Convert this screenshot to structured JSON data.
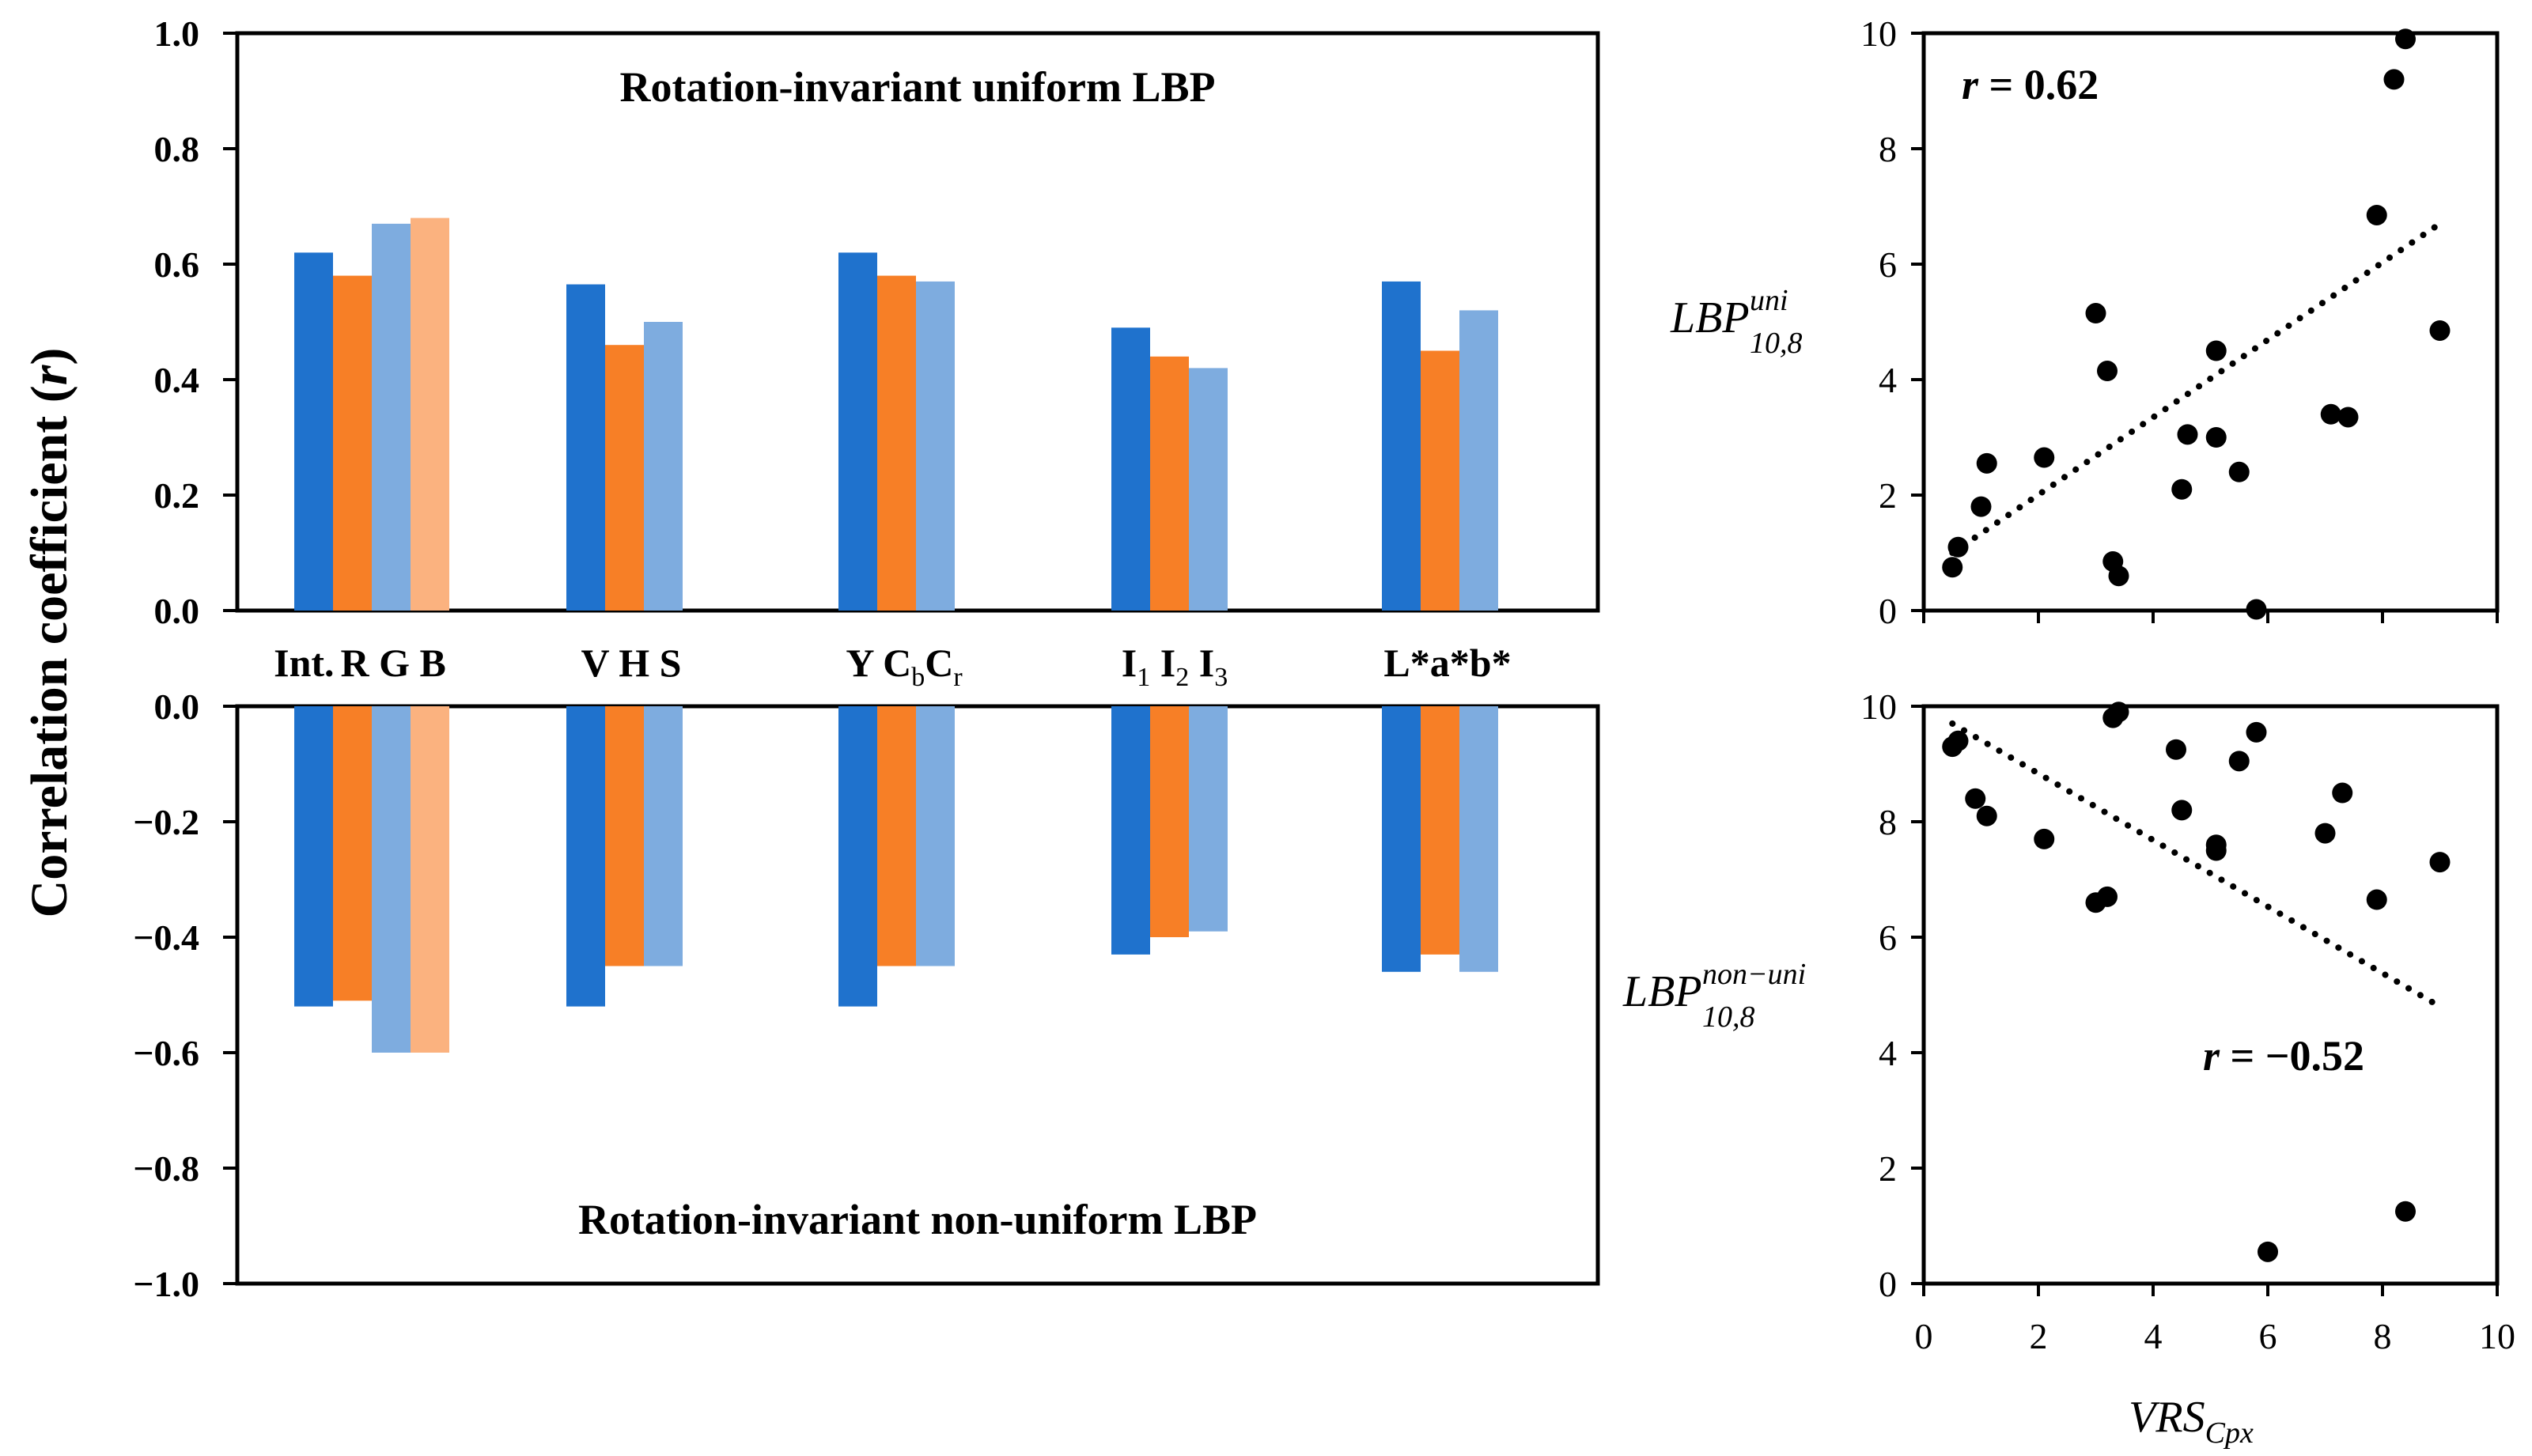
{
  "chart_data": [
    {
      "type": "bar",
      "panel": "top",
      "title": "Rotation-invariant uniform LBP",
      "ylabel": "Correlation coefficient (r)",
      "ylabel_main": "Correlation coefficient (",
      "ylabel_var": "r",
      "ylabel_close": ")",
      "ylim": [
        0.0,
        1.0
      ],
      "yticks": [
        "1.0",
        "0.8",
        "0.6",
        "0.4",
        "0.2",
        "0.0"
      ],
      "groups": [
        {
          "label_parts": [
            {
              "t": "Int."
            },
            {
              "t": "R G B"
            }
          ],
          "values": [
            0.62,
            0.58,
            0.67,
            0.68
          ]
        },
        {
          "label_parts": [
            {
              "t": "V H S"
            }
          ],
          "values": [
            0.565,
            0.46,
            0.5
          ]
        },
        {
          "label_parts": [
            {
              "t": "Y C"
            },
            {
              "t": "b",
              "sub": true
            },
            {
              "t": "C"
            },
            {
              "t": "r",
              "sub": true
            }
          ],
          "values": [
            0.62,
            0.58,
            0.57
          ]
        },
        {
          "label_parts": [
            {
              "t": "I"
            },
            {
              "t": "1",
              "sub": true
            },
            {
              "t": " I"
            },
            {
              "t": "2",
              "sub": true
            },
            {
              "t": " I"
            },
            {
              "t": "3",
              "sub": true
            }
          ],
          "values": [
            0.49,
            0.44,
            0.42
          ]
        },
        {
          "label_parts": [
            {
              "t": "L*a*b*"
            }
          ],
          "values": [
            0.57,
            0.45,
            0.52
          ]
        }
      ],
      "colors": [
        "#1f72cd",
        "#f77f26",
        "#7eacdf",
        "#fbb27f"
      ]
    },
    {
      "type": "bar",
      "panel": "bottom",
      "title": "Rotation-invariant non-uniform LBP",
      "ylim": [
        -1.0,
        0.0
      ],
      "yticks": [
        "0.0",
        "−0.2",
        "−0.4",
        "−0.6",
        "−0.8",
        "−1.0"
      ],
      "groups": [
        {
          "values": [
            -0.52,
            -0.51,
            -0.6,
            -0.6
          ]
        },
        {
          "values": [
            -0.52,
            -0.45,
            -0.45
          ]
        },
        {
          "values": [
            -0.52,
            -0.45,
            -0.45
          ]
        },
        {
          "values": [
            -0.43,
            -0.4,
            -0.39
          ]
        },
        {
          "values": [
            -0.46,
            -0.43,
            -0.46
          ]
        }
      ],
      "colors": [
        "#1f72cd",
        "#f77f26",
        "#7eacdf",
        "#fbb27f"
      ]
    },
    {
      "type": "scatter",
      "panel": "top-right",
      "ylabel": "LBP",
      "ylabel_sup": "uni",
      "ylabel_sub": "10,8",
      "annotation_prefix": "r",
      "annotation_value": " = 0.62",
      "xlim": [
        0,
        10
      ],
      "ylim": [
        0,
        10
      ],
      "yticks": [
        "0",
        "2",
        "4",
        "6",
        "8",
        "10"
      ],
      "points": [
        [
          0.5,
          0.75
        ],
        [
          0.6,
          1.1
        ],
        [
          1.0,
          1.8
        ],
        [
          1.1,
          2.55
        ],
        [
          2.1,
          2.65
        ],
        [
          3.0,
          5.15
        ],
        [
          3.2,
          4.15
        ],
        [
          3.3,
          0.85
        ],
        [
          3.4,
          0.6
        ],
        [
          4.5,
          2.1
        ],
        [
          4.6,
          3.05
        ],
        [
          5.1,
          4.5
        ],
        [
          5.1,
          3.0
        ],
        [
          5.5,
          2.4
        ],
        [
          5.8,
          0.02
        ],
        [
          7.1,
          3.4
        ],
        [
          7.4,
          3.35
        ],
        [
          7.9,
          6.85
        ],
        [
          8.2,
          9.2
        ],
        [
          8.4,
          9.9
        ],
        [
          9.0,
          4.85
        ]
      ],
      "trend": [
        [
          0.5,
          1.0
        ],
        [
          9.0,
          6.7
        ]
      ]
    },
    {
      "type": "scatter",
      "panel": "bottom-right",
      "ylabel": "LBP",
      "ylabel_sup": "non−uni",
      "ylabel_sub": "10,8",
      "annotation_prefix": "r",
      "annotation_value": " = −0.52",
      "xlabel": "VRS",
      "xlabel_sub": "Cpx",
      "xlim": [
        0,
        10
      ],
      "ylim": [
        0,
        10
      ],
      "xticks": [
        "0",
        "2",
        "4",
        "6",
        "8",
        "10"
      ],
      "yticks": [
        "0",
        "2",
        "4",
        "6",
        "8",
        "10"
      ],
      "points": [
        [
          0.5,
          9.3
        ],
        [
          0.6,
          9.4
        ],
        [
          0.9,
          8.4
        ],
        [
          1.1,
          8.1
        ],
        [
          2.1,
          7.7
        ],
        [
          3.0,
          6.6
        ],
        [
          3.2,
          6.7
        ],
        [
          3.3,
          9.8
        ],
        [
          3.4,
          9.9
        ],
        [
          4.4,
          9.25
        ],
        [
          4.5,
          8.2
        ],
        [
          5.1,
          7.6
        ],
        [
          5.1,
          7.5
        ],
        [
          5.5,
          9.05
        ],
        [
          5.8,
          9.55
        ],
        [
          6.0,
          0.55
        ],
        [
          7.0,
          7.8
        ],
        [
          7.3,
          8.5
        ],
        [
          7.9,
          6.65
        ],
        [
          8.4,
          1.25
        ],
        [
          9.0,
          7.3
        ]
      ],
      "trend": [
        [
          0.5,
          9.7
        ],
        [
          9.0,
          4.8
        ]
      ]
    }
  ]
}
